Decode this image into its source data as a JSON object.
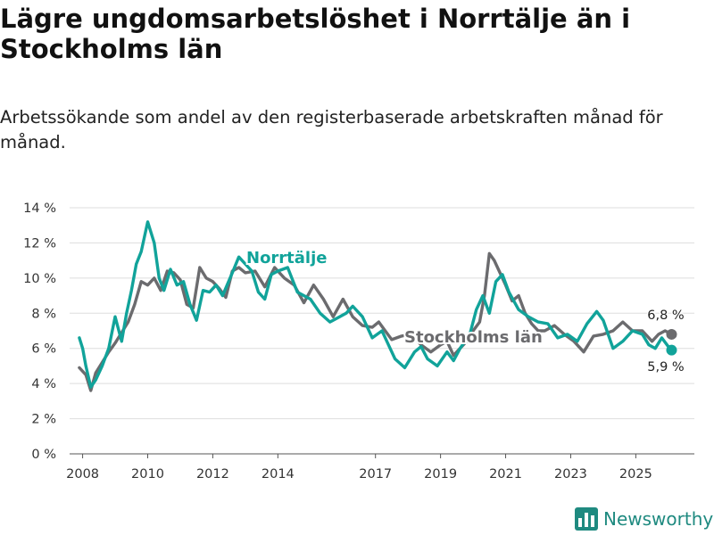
{
  "title": "Lägre ungdomsarbetslöshet i Norrtälje än i Stockholms län",
  "subtitle": "Arbetssökande som andel av den registerbaserade arbetskraften månad för månad.",
  "brand": {
    "name": "Newsworthy",
    "icon": "newsworthy-logo-icon",
    "color": "#1f8a80"
  },
  "chart_data": {
    "type": "line",
    "title": "Lägre ungdomsarbetslöshet i Norrtälje än i Stockholms län",
    "xlabel": "",
    "ylabel": "",
    "ylim": [
      0,
      14
    ],
    "xlim": [
      2007.6,
      2026.8
    ],
    "y_ticks": [
      0,
      2,
      4,
      6,
      8,
      10,
      12,
      14
    ],
    "y_tick_labels": [
      "0 %",
      "2 %",
      "4 %",
      "6 %",
      "8 %",
      "10 %",
      "12 %",
      "14 %"
    ],
    "x_ticks": [
      2008,
      2010,
      2012,
      2014,
      2017,
      2019,
      2021,
      2023,
      2025
    ],
    "x_tick_labels": [
      "2008",
      "2010",
      "2012",
      "2014",
      "2017",
      "2019",
      "2021",
      "2023",
      "2025"
    ],
    "grid": true,
    "series": [
      {
        "name": "Norrtälje",
        "label": "Norrtälje",
        "color": "#11a39a",
        "end_label": "5,9 %",
        "end_value": 5.9,
        "x": [
          2007.9,
          2008.0,
          2008.1,
          2008.25,
          2008.4,
          2008.6,
          2008.8,
          2009.0,
          2009.2,
          2009.35,
          2009.5,
          2009.65,
          2009.8,
          2010.0,
          2010.2,
          2010.35,
          2010.5,
          2010.7,
          2010.9,
          2011.1,
          2011.3,
          2011.5,
          2011.7,
          2011.9,
          2012.1,
          2012.3,
          2012.6,
          2012.8,
          2013.0,
          2013.2,
          2013.4,
          2013.6,
          2013.8,
          2014.0,
          2014.3,
          2014.6,
          2015.0,
          2015.3,
          2015.6,
          2015.9,
          2016.1,
          2016.3,
          2016.6,
          2016.9,
          2017.2,
          2017.4,
          2017.6,
          2017.9,
          2018.2,
          2018.4,
          2018.6,
          2018.9,
          2019.2,
          2019.4,
          2019.6,
          2019.9,
          2020.1,
          2020.3,
          2020.5,
          2020.7,
          2020.9,
          2021.1,
          2021.4,
          2021.7,
          2022.0,
          2022.3,
          2022.6,
          2022.9,
          2023.2,
          2023.5,
          2023.8,
          2024.0,
          2024.3,
          2024.6,
          2024.9,
          2025.2,
          2025.4,
          2025.6,
          2025.8,
          2026.0,
          2026.1
        ],
        "values": [
          6.6,
          6.0,
          5.0,
          3.8,
          4.2,
          5.0,
          6.0,
          7.8,
          6.4,
          8.0,
          9.3,
          10.8,
          11.5,
          13.2,
          12.0,
          10.0,
          9.3,
          10.5,
          9.6,
          9.8,
          8.5,
          7.6,
          9.3,
          9.2,
          9.6,
          9.0,
          10.3,
          11.2,
          10.8,
          10.4,
          9.2,
          8.8,
          10.2,
          10.4,
          10.6,
          9.2,
          8.8,
          8.0,
          7.5,
          7.8,
          8.0,
          8.4,
          7.8,
          6.6,
          7.0,
          6.2,
          5.4,
          4.9,
          5.8,
          6.1,
          5.4,
          5.0,
          5.8,
          5.3,
          6.0,
          6.8,
          8.2,
          9.0,
          8.0,
          9.8,
          10.2,
          9.2,
          8.2,
          7.8,
          7.5,
          7.4,
          6.6,
          6.8,
          6.4,
          7.4,
          8.1,
          7.6,
          6.0,
          6.4,
          7.0,
          6.8,
          6.2,
          6.0,
          6.6,
          6.1,
          5.9
        ]
      },
      {
        "name": "Stockholms län",
        "label": "Stockholms län",
        "color": "#6b6b6e",
        "end_label": "6,8 %",
        "end_value": 6.8,
        "x": [
          2007.9,
          2008.1,
          2008.25,
          2008.4,
          2008.6,
          2008.8,
          2009.0,
          2009.2,
          2009.4,
          2009.6,
          2009.8,
          2010.0,
          2010.2,
          2010.4,
          2010.6,
          2010.8,
          2011.0,
          2011.2,
          2011.4,
          2011.6,
          2011.8,
          2012.0,
          2012.2,
          2012.4,
          2012.6,
          2012.8,
          2013.0,
          2013.3,
          2013.6,
          2013.9,
          2014.2,
          2014.5,
          2014.8,
          2015.1,
          2015.4,
          2015.7,
          2016.0,
          2016.3,
          2016.6,
          2016.9,
          2017.1,
          2017.3,
          2017.5,
          2017.8,
          2018.1,
          2018.4,
          2018.7,
          2019.0,
          2019.2,
          2019.4,
          2019.6,
          2019.8,
          2020.0,
          2020.2,
          2020.35,
          2020.5,
          2020.65,
          2020.8,
          2021.0,
          2021.2,
          2021.4,
          2021.6,
          2021.8,
          2022.0,
          2022.2,
          2022.5,
          2022.8,
          2023.1,
          2023.4,
          2023.7,
          2024.0,
          2024.3,
          2024.6,
          2024.9,
          2025.2,
          2025.5,
          2025.7,
          2025.9,
          2026.1
        ],
        "values": [
          4.9,
          4.5,
          3.6,
          4.6,
          5.2,
          5.8,
          6.3,
          6.9,
          7.5,
          8.5,
          9.8,
          9.6,
          10.0,
          9.3,
          10.4,
          10.3,
          9.9,
          8.5,
          8.3,
          10.6,
          10.0,
          9.8,
          9.4,
          8.9,
          10.4,
          10.6,
          10.3,
          10.4,
          9.5,
          10.6,
          10.0,
          9.6,
          8.6,
          9.6,
          8.8,
          7.8,
          8.8,
          7.8,
          7.3,
          7.2,
          7.5,
          7.0,
          6.5,
          6.7,
          6.8,
          6.2,
          5.8,
          6.2,
          6.4,
          5.6,
          6.0,
          6.4,
          7.0,
          7.5,
          9.0,
          11.4,
          11.0,
          10.4,
          9.6,
          8.7,
          9.0,
          8.0,
          7.4,
          7.0,
          7.0,
          7.3,
          6.8,
          6.4,
          5.8,
          6.7,
          6.8,
          7.0,
          7.5,
          7.0,
          7.0,
          6.4,
          6.8,
          7.0,
          6.8
        ]
      }
    ]
  }
}
